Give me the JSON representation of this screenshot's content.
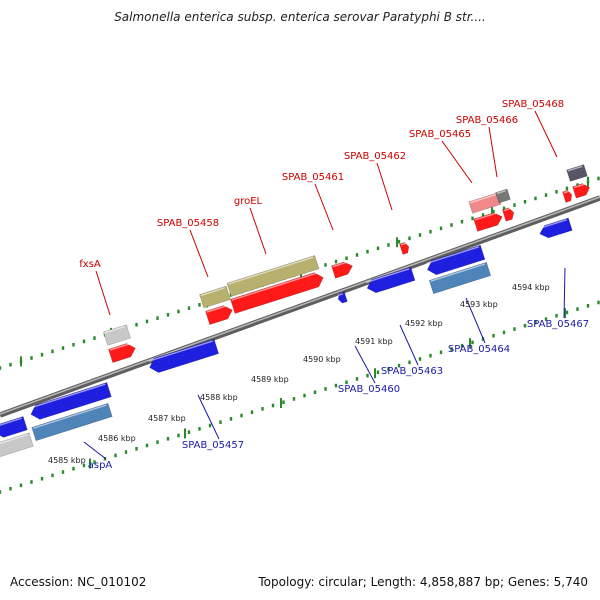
{
  "title": "Salmonella enterica subsp. enterica serovar Paratyphi B str....",
  "footer": {
    "accession": "Accession: NC_010102",
    "summary": "Topology: circular; Length: 4,858,887 bp; Genes: 5,740"
  },
  "colors": {
    "forward_cds": "#ff1a1a",
    "reverse_cds": "#1f1fe0",
    "forward_light": "#f08a8a",
    "reverse_steel": "#4f84b8",
    "olive": "#b8b06e",
    "grey": "#c8c8c8",
    "dark": "#555566",
    "tick": "#2a8a2a",
    "backbone": "#8a8a8a"
  },
  "kbp_labels": [
    "4585 kbp",
    "4586 kbp",
    "4587 kbp",
    "4588 kbp",
    "4589 kbp",
    "4590 kbp",
    "4591 kbp",
    "4592 kbp",
    "4593 kbp",
    "4594 kbp"
  ],
  "top_genes": [
    "fxsA",
    "SPAB_05458",
    "groEL",
    "SPAB_05461",
    "SPAB_05462",
    "SPAB_05465",
    "SPAB_05466",
    "SPAB_05468"
  ],
  "bottom_genes": [
    "aspA",
    "SPAB_05457",
    "SPAB_05460",
    "SPAB_05463",
    "SPAB_05464",
    "SPAB_05467"
  ]
}
